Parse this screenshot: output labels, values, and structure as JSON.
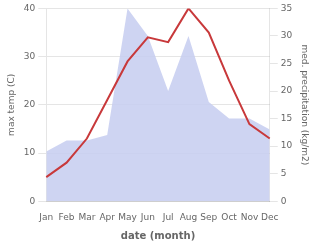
{
  "chart_data": {
    "type": "line",
    "categories": [
      "Jan",
      "Feb",
      "Mar",
      "Apr",
      "May",
      "Jun",
      "Jul",
      "Aug",
      "Sep",
      "Oct",
      "Nov",
      "Dec"
    ],
    "series": [
      {
        "type": "area",
        "axis": "y2",
        "color": "#c5cdf0",
        "values": [
          9,
          11,
          11,
          12,
          35,
          30,
          20,
          30,
          18,
          15,
          15,
          13
        ]
      },
      {
        "type": "line",
        "color": "#c8393b",
        "values": [
          5,
          8,
          13,
          21,
          29,
          34,
          33,
          40,
          35,
          25,
          16,
          13
        ]
      }
    ],
    "xlabel": "date (month)",
    "ylabel": "max temp (C)",
    "y2label": "med. precipitation (kg/m2)",
    "ylim": [
      0,
      40
    ],
    "yticks": [
      0,
      10,
      20,
      30,
      40
    ],
    "y2lim": [
      0,
      35
    ],
    "y2ticks": [
      0,
      5,
      10,
      15,
      20,
      25,
      30,
      35
    ],
    "grid": true
  }
}
